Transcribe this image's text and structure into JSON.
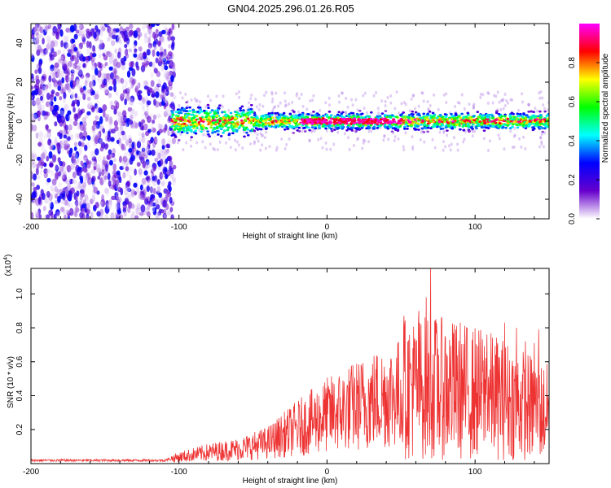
{
  "title": "GN04.2025.296.01.26.R05",
  "chart_data": [
    {
      "type": "heatmap",
      "name": "spectrogram",
      "xlabel": "Height of straight line (km)",
      "ylabel": "Frequency (Hz)",
      "xlim": [
        -200,
        150
      ],
      "ylim": [
        -50,
        50
      ],
      "xticks": [
        -200,
        -100,
        0,
        100
      ],
      "xtick_labels": [
        "-200",
        "-100",
        "0",
        "100"
      ],
      "yticks": [
        -40,
        -20,
        0,
        20,
        40
      ],
      "ytick_labels": [
        "-40",
        "-20",
        "0",
        "20",
        "40"
      ],
      "colorbar": {
        "label": "Normalized spectral amplitude",
        "range": [
          0,
          1
        ],
        "ticks": [
          0,
          0.2,
          0.4,
          0.6,
          0.8
        ],
        "tick_labels": [
          "0.0",
          "0.2",
          "0.4",
          "0.6",
          "0.8"
        ],
        "stops": [
          "#ffffff",
          "#6600cc",
          "#0000ff",
          "#00ffff",
          "#00ff00",
          "#ffff00",
          "#ff0000",
          "#ff00ff"
        ]
      },
      "regions": [
        {
          "desc": "broadband noise",
          "x_range": [
            -200,
            -105
          ],
          "freq_range": [
            -50,
            50
          ],
          "amplitude_range": [
            0.02,
            0.3
          ]
        },
        {
          "desc": "signal band",
          "x_range": [
            -105,
            150
          ],
          "freq_center": 0,
          "freq_halfwidth": 5,
          "amplitude_range": [
            0.1,
            1.0
          ]
        }
      ]
    },
    {
      "type": "line",
      "name": "snr",
      "xlabel": "Height of straight line (km)",
      "ylabel": "SNR (10 * v/v)",
      "y_multiplier_label": "(x10",
      "y_multiplier_exp": "4",
      "xlim": [
        -200,
        150
      ],
      "ylim": [
        0,
        1.15
      ],
      "xticks": [
        -200,
        -100,
        0,
        100
      ],
      "xtick_labels": [
        "-200",
        "-100",
        "0",
        "100"
      ],
      "yticks": [
        0.2,
        0.4,
        0.6,
        0.8,
        1.0
      ],
      "ytick_labels": [
        "0.2",
        "0.4",
        "0.6",
        "0.8",
        "1.0"
      ],
      "color": "#ee3333",
      "envelope": {
        "x": [
          -200,
          -110,
          -100,
          -80,
          -60,
          -40,
          -20,
          0,
          20,
          40,
          50,
          60,
          70,
          80,
          100,
          120,
          150
        ],
        "y": [
          0.02,
          0.02,
          0.04,
          0.07,
          0.09,
          0.13,
          0.22,
          0.3,
          0.36,
          0.42,
          0.44,
          0.45,
          0.45,
          0.44,
          0.42,
          0.38,
          0.3
        ]
      },
      "peaks": [
        {
          "x": 70,
          "y": 1.16
        },
        {
          "x": 67,
          "y": 0.98
        },
        {
          "x": 62,
          "y": 0.9
        },
        {
          "x": 52,
          "y": 0.87
        },
        {
          "x": 73,
          "y": 0.84
        },
        {
          "x": 90,
          "y": 0.83
        },
        {
          "x": 120,
          "y": 0.83
        },
        {
          "x": 128,
          "y": 0.8
        },
        {
          "x": 143,
          "y": 0.79
        },
        {
          "x": 85,
          "y": 0.77
        },
        {
          "x": 108,
          "y": 0.76
        },
        {
          "x": 80,
          "y": 0.74
        },
        {
          "x": 98,
          "y": 0.73
        },
        {
          "x": 134,
          "y": 0.72
        },
        {
          "x": 140,
          "y": 0.71
        },
        {
          "x": 115,
          "y": 0.69
        },
        {
          "x": 58,
          "y": 0.68
        }
      ]
    }
  ]
}
